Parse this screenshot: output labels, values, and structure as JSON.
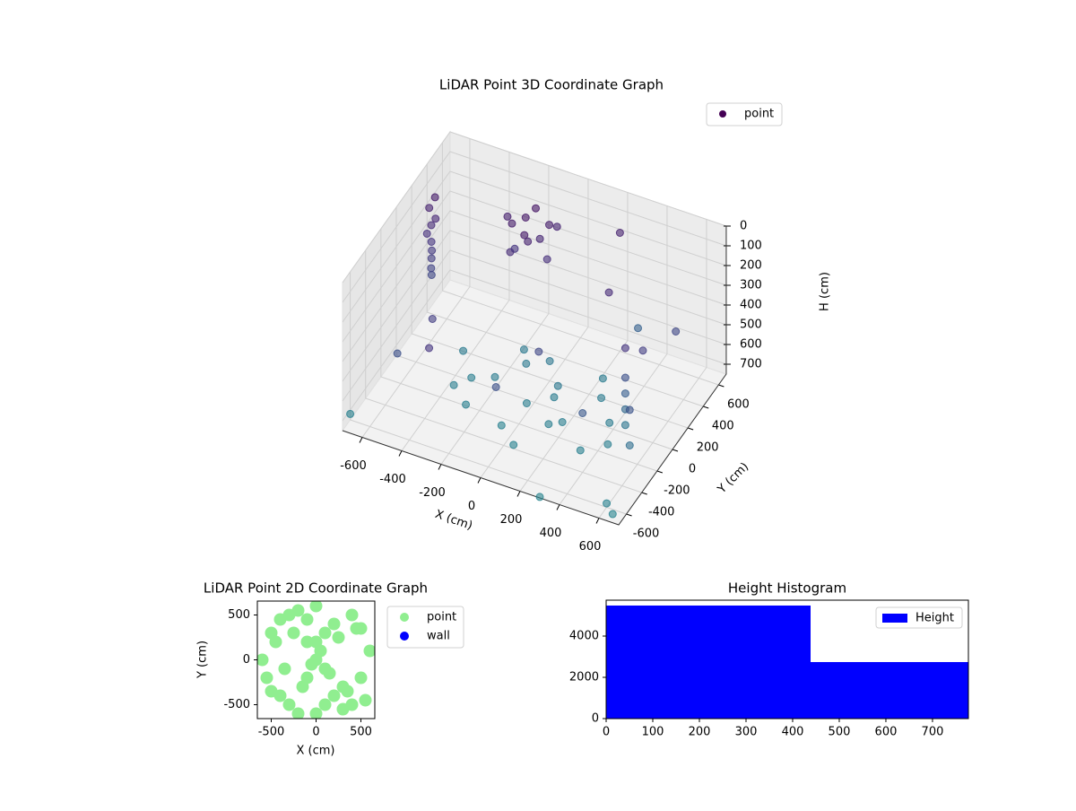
{
  "chart_data": [
    {
      "type": "scatter3d",
      "title": "LiDAR Point 3D Coordinate Graph",
      "xlabel": "X (cm)",
      "ylabel": "Y (cm)",
      "zlabel": "H (cm)",
      "xlim": [
        -700,
        700
      ],
      "ylim": [
        -700,
        700
      ],
      "zlim": [
        0,
        750
      ],
      "zinverted": true,
      "xticks": [
        -600,
        -400,
        -200,
        0,
        200,
        400,
        600
      ],
      "yticks": [
        -600,
        -400,
        -200,
        0,
        200,
        400,
        600
      ],
      "zticks": [
        0,
        100,
        200,
        300,
        400,
        500,
        600,
        700
      ],
      "grid": true,
      "legend": "upper right",
      "colormap": "viridis",
      "series": [
        {
          "name": "point",
          "color": "#440154",
          "x": [
            -250,
            -200,
            -150,
            -100,
            -220,
            -180,
            -120,
            -60,
            -300,
            -160,
            -80,
            -240,
            -650,
            -620,
            -600,
            -580,
            -560,
            -640,
            -610,
            -590,
            -570,
            -630,
            300,
            500,
            -400,
            200,
            600,
            -500,
            400,
            100,
            -300,
            550,
            0,
            350,
            500,
            500,
            500,
            500,
            600,
            600,
            -400,
            -300,
            -200,
            -100,
            0,
            100,
            200,
            300,
            400,
            -250,
            -50,
            150,
            350,
            0,
            -150,
            250,
            -350,
            50,
            450,
            100,
            650,
            600,
            -700,
            300
          ],
          "y": [
            350,
            400,
            300,
            450,
            250,
            480,
            380,
            320,
            420,
            280,
            500,
            360,
            300,
            250,
            200,
            150,
            100,
            350,
            280,
            180,
            120,
            220,
            200,
            -100,
            -300,
            600,
            300,
            -500,
            -400,
            -200,
            -600,
            0,
            -500,
            450,
            -100,
            -100,
            -100,
            -100,
            -300,
            -300,
            100,
            -50,
            0,
            150,
            -100,
            50,
            -150,
            100,
            -50,
            -250,
            -300,
            -200,
            -300,
            200,
            250,
            250,
            -150,
            -400,
            -200,
            0,
            -650,
            -600,
            -600,
            -700
          ],
          "h": [
            120,
            100,
            150,
            130,
            200,
            90,
            170,
            220,
            140,
            110,
            160,
            250,
            150,
            200,
            250,
            300,
            350,
            120,
            180,
            280,
            330,
            230,
            200,
            250,
            300,
            150,
            350,
            400,
            450,
            350,
            250,
            300,
            400,
            500,
            400,
            480,
            560,
            640,
            420,
            600,
            680,
            700,
            690,
            670,
            700,
            660,
            700,
            680,
            690,
            710,
            720,
            700,
            710,
            650,
            670,
            680,
            700,
            730,
            700,
            690,
            740,
            730,
            720,
            745
          ]
        }
      ]
    },
    {
      "type": "scatter",
      "title": "LiDAR Point 2D Coordinate Graph",
      "xlabel": "X (cm)",
      "ylabel": "Y (cm)",
      "xlim": [
        -655,
        655
      ],
      "ylim": [
        -655,
        655
      ],
      "xticks": [
        -500,
        0,
        500
      ],
      "yticks": [
        -500,
        0,
        500
      ],
      "legend": "outside right",
      "series": [
        {
          "name": "point",
          "color": "#90ee90",
          "x": [
            -600,
            -500,
            -400,
            -300,
            -200,
            -100,
            0,
            100,
            200,
            300,
            400,
            500,
            600,
            -550,
            -450,
            -350,
            -250,
            -150,
            -50,
            50,
            150,
            250,
            350,
            450,
            550,
            -300,
            -200,
            -100,
            0,
            100,
            200,
            300,
            -400,
            400,
            0,
            -500,
            500,
            -100,
            100,
            0
          ],
          "y": [
            0,
            300,
            -400,
            500,
            -600,
            200,
            600,
            -500,
            400,
            -300,
            500,
            -200,
            100,
            -200,
            200,
            -100,
            300,
            -300,
            -50,
            100,
            -150,
            250,
            -350,
            350,
            -450,
            -500,
            550,
            -200,
            -600,
            300,
            -400,
            -550,
            450,
            -500,
            0,
            -350,
            350,
            450,
            -100,
            200
          ]
        },
        {
          "name": "wall",
          "color": "#0000ff",
          "x": [],
          "y": []
        }
      ]
    },
    {
      "type": "histogram",
      "title": "Height Histogram",
      "name": "Height",
      "color": "#0000ff",
      "bins": [
        0,
        438.5,
        777
      ],
      "values": [
        5480,
        2740
      ],
      "xlim": [
        0,
        777
      ],
      "ylim": [
        0,
        5740
      ],
      "xticks": [
        0,
        100,
        200,
        300,
        400,
        500,
        600,
        700
      ],
      "yticks": [
        0,
        2000,
        4000
      ],
      "legend": "upper right"
    }
  ]
}
